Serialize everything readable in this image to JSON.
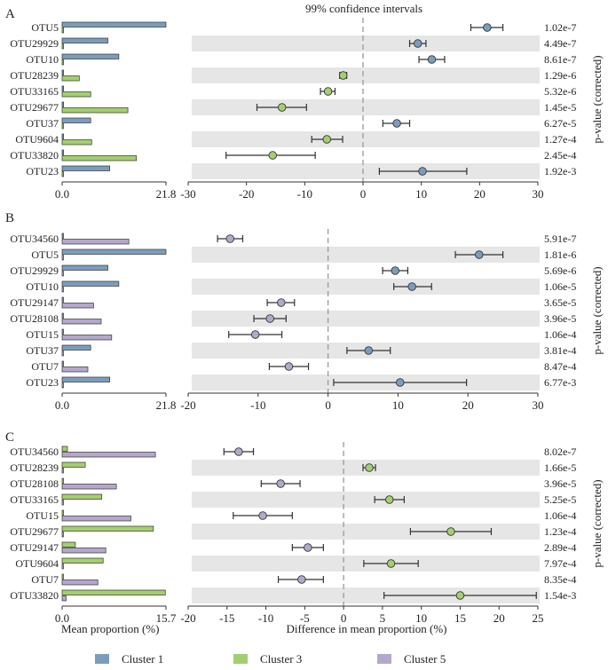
{
  "title": "99% confidence intervals",
  "colors": {
    "cluster1": "#7b9dbd",
    "cluster3": "#a3cf6e",
    "cluster5": "#b3a8cc",
    "band": "#e6e6e6",
    "zero_line": "#999999",
    "error_bar": "#333333"
  },
  "axis_labels": {
    "mean": "Mean proportion (%)",
    "diff": "Difference in mean proportion (%)",
    "pvalue": "p-value (corrected)"
  },
  "legend": [
    {
      "label": "Cluster 1",
      "color": "#7b9dbd"
    },
    {
      "label": "Cluster 3",
      "color": "#a3cf6e"
    },
    {
      "label": "Cluster 5",
      "color": "#b3a8cc"
    }
  ],
  "chart_data": [
    {
      "type": "bar",
      "panel": "A",
      "groups": [
        "Cluster 1",
        "Cluster 3"
      ],
      "bar_xlim": [
        0,
        21.8
      ],
      "bar_ticks": [
        "0.0",
        "21.8"
      ],
      "diff_xlim": [
        -30,
        30
      ],
      "diff_ticks": [
        -30,
        -20,
        -10,
        0,
        10,
        20,
        30
      ],
      "rows": [
        {
          "otu": "OTU5",
          "means": [
            21.8,
            0.3
          ],
          "diff": 21.3,
          "ci": [
            18.5,
            24.0
          ],
          "winner": 0,
          "p": "1.02e-7"
        },
        {
          "otu": "OTU29929",
          "means": [
            9.6,
            0.3
          ],
          "diff": 9.4,
          "ci": [
            8.0,
            10.8
          ],
          "winner": 0,
          "p": "4.49e-7"
        },
        {
          "otu": "OTU10",
          "means": [
            11.9,
            0.3
          ],
          "diff": 11.8,
          "ci": [
            9.6,
            14.0
          ],
          "winner": 0,
          "p": "8.61e-7"
        },
        {
          "otu": "OTU28239",
          "means": [
            0.3,
            3.6
          ],
          "diff": -3.4,
          "ci": [
            -4.0,
            -2.8
          ],
          "winner": 1,
          "p": "1.29e-6"
        },
        {
          "otu": "OTU33165",
          "means": [
            0.3,
            6.0
          ],
          "diff": -6.0,
          "ci": [
            -7.3,
            -4.8
          ],
          "winner": 1,
          "p": "5.32e-6"
        },
        {
          "otu": "OTU29677",
          "means": [
            0.3,
            13.8
          ],
          "diff": -13.9,
          "ci": [
            -18.2,
            -9.7
          ],
          "winner": 1,
          "p": "1.45e-5"
        },
        {
          "otu": "OTU37",
          "means": [
            6.0,
            0.2
          ],
          "diff": 5.8,
          "ci": [
            3.4,
            8.0
          ],
          "winner": 0,
          "p": "6.27e-5"
        },
        {
          "otu": "OTU9604",
          "means": [
            0.3,
            6.2
          ],
          "diff": -6.2,
          "ci": [
            -8.8,
            -3.5
          ],
          "winner": 1,
          "p": "1.27e-4"
        },
        {
          "otu": "OTU33820",
          "means": [
            0.3,
            15.6
          ],
          "diff": -15.5,
          "ci": [
            -23.5,
            -8.2
          ],
          "winner": 1,
          "p": "2.45e-4"
        },
        {
          "otu": "OTU23",
          "means": [
            10.0,
            0.3
          ],
          "diff": 10.2,
          "ci": [
            2.8,
            17.8
          ],
          "winner": 0,
          "p": "1.92e-3"
        }
      ]
    },
    {
      "type": "bar",
      "panel": "B",
      "groups": [
        "Cluster 1",
        "Cluster 5"
      ],
      "bar_xlim": [
        0,
        21.8
      ],
      "bar_ticks": [
        "0.0",
        "21.8"
      ],
      "diff_xlim": [
        -20,
        30
      ],
      "diff_ticks": [
        -20,
        -10,
        0,
        10,
        20,
        30
      ],
      "rows": [
        {
          "otu": "OTU34560",
          "means": [
            0.2,
            14.0
          ],
          "diff": -14.0,
          "ci": [
            -15.8,
            -12.2
          ],
          "winner": 1,
          "p": "5.91e-7"
        },
        {
          "otu": "OTU5",
          "means": [
            21.8,
            0.2
          ],
          "diff": 21.6,
          "ci": [
            18.2,
            25.0
          ],
          "winner": 0,
          "p": "1.81e-6"
        },
        {
          "otu": "OTU29929",
          "means": [
            9.6,
            0.2
          ],
          "diff": 9.6,
          "ci": [
            7.8,
            11.4
          ],
          "winner": 0,
          "p": "5.69e-6"
        },
        {
          "otu": "OTU10",
          "means": [
            11.9,
            0.2
          ],
          "diff": 12.0,
          "ci": [
            9.4,
            14.8
          ],
          "winner": 0,
          "p": "1.06e-5"
        },
        {
          "otu": "OTU29147",
          "means": [
            0.2,
            6.6
          ],
          "diff": -6.7,
          "ci": [
            -8.7,
            -4.8
          ],
          "winner": 1,
          "p": "3.65e-5"
        },
        {
          "otu": "OTU28108",
          "means": [
            0.2,
            8.2
          ],
          "diff": -8.3,
          "ci": [
            -10.6,
            -6.0
          ],
          "winner": 1,
          "p": "3.96e-5"
        },
        {
          "otu": "OTU15",
          "means": [
            0.2,
            10.4
          ],
          "diff": -10.4,
          "ci": [
            -14.2,
            -6.6
          ],
          "winner": 1,
          "p": "1.06e-4"
        },
        {
          "otu": "OTU37",
          "means": [
            6.0,
            0.2
          ],
          "diff": 5.8,
          "ci": [
            2.7,
            8.9
          ],
          "winner": 0,
          "p": "3.81e-4"
        },
        {
          "otu": "OTU7",
          "means": [
            0.2,
            5.4
          ],
          "diff": -5.6,
          "ci": [
            -8.4,
            -2.8
          ],
          "winner": 1,
          "p": "8.47e-4"
        },
        {
          "otu": "OTU23",
          "means": [
            10.0,
            0.2
          ],
          "diff": 10.3,
          "ci": [
            0.8,
            19.8
          ],
          "winner": 0,
          "p": "6.77e-3"
        }
      ]
    },
    {
      "type": "bar",
      "panel": "C",
      "groups": [
        "Cluster 3",
        "Cluster 5"
      ],
      "bar_xlim": [
        0,
        15.7
      ],
      "bar_ticks": [
        "0.0",
        "15.7"
      ],
      "diff_xlim": [
        -20,
        25
      ],
      "diff_ticks": [
        -20,
        -15,
        -10,
        -5,
        0,
        5,
        10,
        15,
        20,
        25
      ],
      "rows": [
        {
          "otu": "OTU34560",
          "means": [
            0.8,
            14.1
          ],
          "diff": -13.5,
          "ci": [
            -15.4,
            -11.6
          ],
          "winner": 1,
          "p": "8.02e-7"
        },
        {
          "otu": "OTU28239",
          "means": [
            3.5,
            0.2
          ],
          "diff": 3.3,
          "ci": [
            2.5,
            4.1
          ],
          "winner": 0,
          "p": "1.66e-5"
        },
        {
          "otu": "OTU28108",
          "means": [
            0.2,
            8.2
          ],
          "diff": -8.1,
          "ci": [
            -10.6,
            -5.6
          ],
          "winner": 1,
          "p": "3.96e-5"
        },
        {
          "otu": "OTU33165",
          "means": [
            6.0,
            0.2
          ],
          "diff": 5.9,
          "ci": [
            4.0,
            7.8
          ],
          "winner": 0,
          "p": "5.25e-5"
        },
        {
          "otu": "OTU15",
          "means": [
            0.2,
            10.4
          ],
          "diff": -10.4,
          "ci": [
            -14.2,
            -6.6
          ],
          "winner": 1,
          "p": "1.06e-4"
        },
        {
          "otu": "OTU29677",
          "means": [
            13.8,
            0.2
          ],
          "diff": 13.8,
          "ci": [
            8.6,
            19.0
          ],
          "winner": 0,
          "p": "1.23e-4"
        },
        {
          "otu": "OTU29147",
          "means": [
            2.0,
            6.6
          ],
          "diff": -4.6,
          "ci": [
            -6.6,
            -2.6
          ],
          "winner": 1,
          "p": "2.89e-4"
        },
        {
          "otu": "OTU9604",
          "means": [
            6.2,
            0.2
          ],
          "diff": 6.1,
          "ci": [
            2.6,
            9.6
          ],
          "winner": 0,
          "p": "7.97e-4"
        },
        {
          "otu": "OTU7",
          "means": [
            0.2,
            5.4
          ],
          "diff": -5.4,
          "ci": [
            -8.4,
            -2.6
          ],
          "winner": 1,
          "p": "8.35e-4"
        },
        {
          "otu": "OTU33820",
          "means": [
            15.6,
            0.6
          ],
          "diff": 15.0,
          "ci": [
            5.2,
            24.8
          ],
          "winner": 0,
          "p": "1.54e-3"
        }
      ]
    }
  ]
}
